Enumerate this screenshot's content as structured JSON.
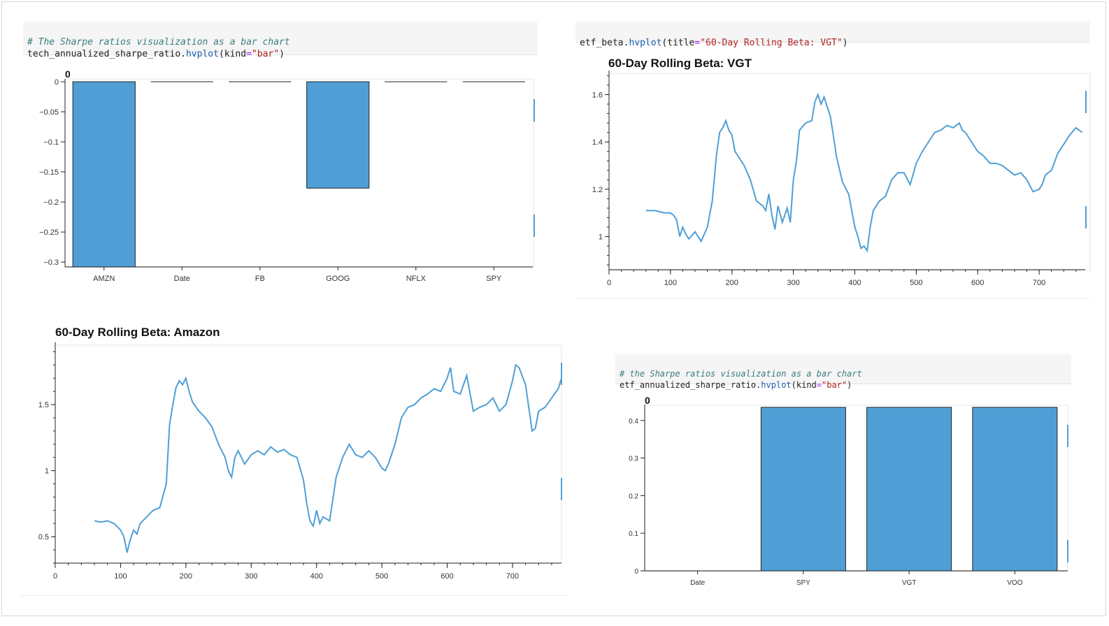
{
  "cells": [
    {
      "comment": "# The Sharpe ratios visualization as a bar chart",
      "obj": "tech_annualized_sharpe_ratio.",
      "fn": "hvplot",
      "open": "(kind",
      "eq": "=",
      "arg": "\"bar\"",
      "close": ")"
    },
    {
      "obj": "etf_beta.",
      "fn": "hvplot",
      "open": "(title",
      "eq": "=",
      "arg": "\"60-Day Rolling Beta: VGT\"",
      "close": ")"
    },
    {
      "comment": "# the Sharpe ratios visualization as a bar chart",
      "obj": "etf_annualized_sharpe_ratio.",
      "fn": "hvplot",
      "open": "(kind",
      "eq": "=",
      "arg": "\"bar\"",
      "close": ")"
    }
  ],
  "chart_data": [
    {
      "id": "tech_sharpe",
      "type": "bar",
      "title": "0",
      "categories": [
        "AMZN",
        "Date",
        "FB",
        "GOOG",
        "NFLX",
        "SPY"
      ],
      "values": [
        -0.308,
        0,
        0,
        -0.177,
        0,
        0
      ],
      "ylim": [
        -0.308,
        0
      ],
      "yticks": [
        0,
        -0.05,
        -0.1,
        -0.15,
        -0.2,
        -0.25,
        -0.3
      ],
      "ytick_labels": [
        "0",
        "−0.05",
        "−0.1",
        "−0.15",
        "−0.2",
        "−0.25",
        "−0.3"
      ]
    },
    {
      "id": "vgt_beta",
      "type": "line",
      "title": "60-Day Rolling Beta: VGT",
      "xlim": [
        0,
        775
      ],
      "ylim": [
        0.86,
        1.69
      ],
      "xticks": [
        0,
        100,
        200,
        300,
        400,
        500,
        600,
        700
      ],
      "yticks": [
        1,
        1.2,
        1.4,
        1.6
      ],
      "ytick_labels": [
        "1",
        "1.2",
        "1.4",
        "1.6"
      ],
      "x": [
        60,
        75,
        90,
        100,
        105,
        110,
        115,
        120,
        125,
        130,
        140,
        150,
        160,
        168,
        175,
        180,
        185,
        190,
        195,
        200,
        205,
        210,
        220,
        230,
        240,
        250,
        255,
        260,
        265,
        270,
        275,
        278,
        282,
        290,
        295,
        300,
        305,
        310,
        320,
        330,
        335,
        340,
        345,
        350,
        355,
        360,
        365,
        370,
        380,
        390,
        400,
        405,
        410,
        415,
        420,
        425,
        430,
        440,
        450,
        460,
        470,
        480,
        490,
        500,
        510,
        520,
        530,
        540,
        550,
        560,
        570,
        575,
        580,
        590,
        600,
        610,
        620,
        630,
        640,
        650,
        660,
        670,
        680,
        690,
        700,
        705,
        710,
        720,
        730,
        740,
        750,
        760,
        770
      ],
      "y": [
        1.11,
        1.11,
        1.1,
        1.1,
        1.09,
        1.07,
        1.0,
        1.04,
        1.01,
        0.99,
        1.02,
        0.98,
        1.04,
        1.15,
        1.35,
        1.44,
        1.46,
        1.49,
        1.45,
        1.43,
        1.36,
        1.34,
        1.3,
        1.24,
        1.15,
        1.13,
        1.11,
        1.18,
        1.09,
        1.03,
        1.13,
        1.1,
        1.06,
        1.12,
        1.06,
        1.24,
        1.32,
        1.45,
        1.48,
        1.49,
        1.57,
        1.6,
        1.56,
        1.59,
        1.55,
        1.51,
        1.43,
        1.34,
        1.23,
        1.18,
        1.04,
        1.0,
        0.95,
        0.96,
        0.94,
        1.04,
        1.11,
        1.15,
        1.17,
        1.24,
        1.27,
        1.27,
        1.22,
        1.31,
        1.36,
        1.4,
        1.44,
        1.45,
        1.47,
        1.46,
        1.48,
        1.45,
        1.44,
        1.4,
        1.36,
        1.34,
        1.31,
        1.31,
        1.3,
        1.28,
        1.26,
        1.27,
        1.24,
        1.19,
        1.2,
        1.22,
        1.26,
        1.28,
        1.35,
        1.39,
        1.43,
        1.46,
        1.44
      ]
    },
    {
      "id": "amzn_beta",
      "type": "line",
      "title": "60-Day Rolling Beta: Amazon",
      "xlim": [
        0,
        775
      ],
      "ylim": [
        0.3,
        1.95
      ],
      "xticks": [
        0,
        100,
        200,
        300,
        400,
        500,
        600,
        700
      ],
      "yticks": [
        0.5,
        1,
        1.5
      ],
      "ytick_labels": [
        "0.5",
        "1",
        "1.5"
      ],
      "x": [
        60,
        70,
        80,
        90,
        100,
        105,
        110,
        115,
        120,
        125,
        130,
        140,
        150,
        160,
        170,
        175,
        180,
        185,
        190,
        195,
        200,
        205,
        210,
        220,
        230,
        240,
        250,
        260,
        265,
        270,
        275,
        280,
        290,
        300,
        310,
        320,
        330,
        340,
        350,
        360,
        370,
        380,
        385,
        390,
        395,
        400,
        405,
        410,
        420,
        430,
        440,
        450,
        460,
        470,
        480,
        490,
        500,
        505,
        510,
        520,
        530,
        540,
        550,
        560,
        570,
        580,
        590,
        600,
        605,
        610,
        620,
        630,
        640,
        650,
        660,
        670,
        680,
        690,
        700,
        705,
        710,
        720,
        730,
        735,
        740,
        750,
        760,
        770,
        775
      ],
      "y": [
        0.62,
        0.61,
        0.62,
        0.6,
        0.55,
        0.5,
        0.38,
        0.48,
        0.55,
        0.52,
        0.6,
        0.65,
        0.7,
        0.72,
        0.9,
        1.35,
        1.5,
        1.63,
        1.68,
        1.65,
        1.7,
        1.6,
        1.52,
        1.45,
        1.4,
        1.33,
        1.2,
        1.1,
        1.0,
        0.95,
        1.1,
        1.15,
        1.05,
        1.12,
        1.15,
        1.12,
        1.18,
        1.14,
        1.16,
        1.12,
        1.1,
        0.93,
        0.75,
        0.62,
        0.58,
        0.7,
        0.6,
        0.65,
        0.62,
        0.95,
        1.1,
        1.2,
        1.12,
        1.1,
        1.15,
        1.1,
        1.02,
        1.0,
        1.05,
        1.2,
        1.4,
        1.48,
        1.5,
        1.55,
        1.58,
        1.62,
        1.6,
        1.7,
        1.78,
        1.6,
        1.58,
        1.72,
        1.45,
        1.48,
        1.5,
        1.55,
        1.45,
        1.5,
        1.68,
        1.8,
        1.78,
        1.65,
        1.3,
        1.32,
        1.45,
        1.48,
        1.55,
        1.62,
        1.7
      ]
    },
    {
      "id": "etf_sharpe",
      "type": "bar",
      "title": "0",
      "categories": [
        "Date",
        "SPY",
        "VGT",
        "VOO"
      ],
      "values": [
        0,
        0.435,
        0.435,
        0.435
      ],
      "ylim": [
        0,
        0.435
      ],
      "yticks": [
        0,
        0.1,
        0.2,
        0.3,
        0.4
      ],
      "ytick_labels": [
        "0",
        "0.1",
        "0.2",
        "0.3",
        "0.4"
      ]
    }
  ]
}
